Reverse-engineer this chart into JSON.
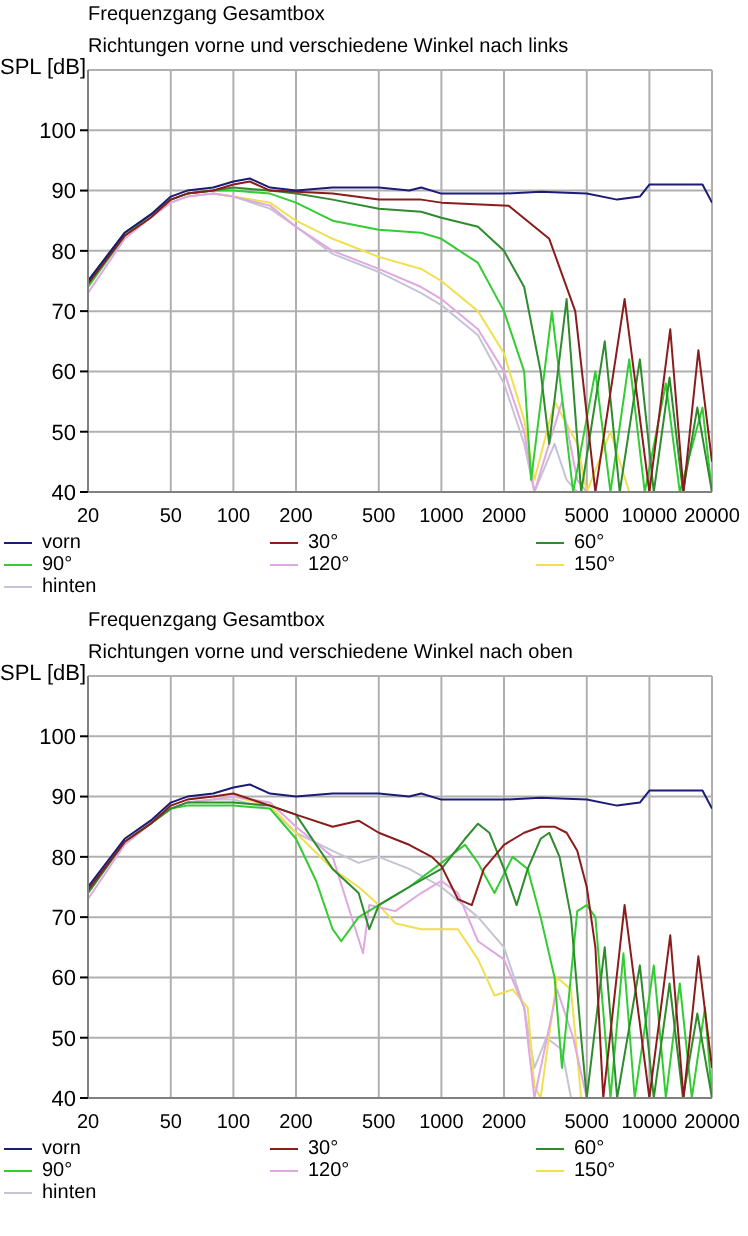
{
  "chart_data": [
    {
      "type": "line",
      "title": "Frequenzgang Gesamtbox",
      "subtitle": "Richtungen vorne und verschiedene Winkel nach links",
      "ylabel": "SPL [dB]",
      "log": "x",
      "xlim": [
        20,
        20000
      ],
      "xticks": [
        20,
        50,
        100,
        200,
        500,
        1000,
        2000,
        5000,
        10000,
        20000
      ],
      "ylim": [
        40,
        110
      ],
      "yticks": [
        40,
        50,
        60,
        70,
        80,
        90,
        100
      ],
      "grid": true,
      "legend": "bottom",
      "marker": "none",
      "series": [
        {
          "name": "vorn",
          "color": "#1c1c78",
          "x": [
            20,
            30,
            40,
            50,
            60,
            80,
            100,
            120,
            150,
            200,
            300,
            400,
            500,
            700,
            800,
            1000,
            2000,
            3000,
            5000,
            7000,
            9000,
            10000,
            15000,
            18000,
            20000
          ],
          "values": [
            75,
            83,
            86,
            89,
            90,
            90.5,
            91.5,
            92,
            90.5,
            90,
            90.5,
            90.5,
            90.5,
            90,
            90.5,
            89.5,
            89.5,
            89.8,
            89.5,
            88.5,
            89,
            91,
            91,
            91,
            88
          ]
        },
        {
          "name": "30°",
          "color": "#8b1c1c",
          "x": [
            20,
            30,
            40,
            50,
            60,
            80,
            100,
            120,
            150,
            300,
            500,
            800,
            1000,
            2100,
            3300,
            4400,
            5500,
            7600,
            10000,
            12600,
            14600,
            17200,
            20000
          ],
          "values": [
            74.5,
            82.5,
            85.5,
            88.5,
            89.5,
            90,
            91,
            91.5,
            90,
            89.5,
            88.5,
            88.5,
            88,
            87.5,
            82,
            70,
            40,
            72,
            40,
            67,
            40,
            63.5,
            45
          ]
        },
        {
          "name": "60°",
          "color": "#2e8b2e",
          "x": [
            20,
            30,
            40,
            50,
            60,
            80,
            100,
            150,
            200,
            300,
            500,
            800,
            1000,
            1500,
            2000,
            2500,
            3000,
            3300,
            4000,
            4700,
            6100,
            7200,
            9000,
            10500,
            12500,
            14500,
            17000,
            20000
          ],
          "values": [
            75,
            83,
            86,
            88.5,
            89.5,
            90,
            90.5,
            90,
            89.5,
            88.5,
            87,
            86.5,
            85.5,
            84,
            80,
            74,
            60,
            48,
            72,
            40,
            65,
            40,
            62,
            40,
            59,
            40,
            54,
            40
          ]
        },
        {
          "name": "90°",
          "color": "#33cc33",
          "x": [
            20,
            30,
            40,
            50,
            60,
            80,
            100,
            150,
            200,
            300,
            500,
            800,
            1000,
            1500,
            2000,
            2500,
            2700,
            3400,
            4300,
            5500,
            6500,
            8000,
            9500,
            12000,
            14000,
            18000,
            20000
          ],
          "values": [
            74,
            82.5,
            86,
            88.5,
            89.5,
            90,
            90,
            89.5,
            88,
            85,
            83.5,
            83,
            82,
            78,
            70,
            60,
            42,
            70,
            40,
            60,
            40,
            62,
            40,
            58,
            40,
            54,
            40
          ]
        },
        {
          "name": "120°",
          "color": "#e0a8e0",
          "x": [
            20,
            30,
            40,
            50,
            60,
            80,
            100,
            150,
            200,
            300,
            500,
            800,
            1000,
            1500,
            2000,
            2500,
            2800,
            3800,
            4500,
            5000
          ],
          "values": [
            73,
            82,
            85.5,
            88,
            89,
            89.5,
            89,
            87.5,
            84,
            80,
            77,
            74,
            72,
            67,
            60,
            50,
            40,
            55,
            42,
            40
          ]
        },
        {
          "name": "150°",
          "color": "#f0e050",
          "x": [
            80,
            100,
            150,
            200,
            300,
            500,
            800,
            1000,
            1500,
            2000,
            2500,
            2800,
            3500,
            4500,
            5000,
            6500,
            8000
          ],
          "values": [
            89.5,
            89,
            88,
            85,
            82,
            79,
            77,
            75,
            70,
            63,
            52,
            42,
            55,
            48,
            40,
            50,
            40
          ]
        },
        {
          "name": "hinten",
          "color": "#c4c4d4",
          "x": [
            20,
            30,
            40,
            50,
            60,
            80,
            100,
            150,
            200,
            300,
            500,
            800,
            1000,
            1500,
            2000,
            2500,
            2800,
            3500,
            4000,
            4500
          ],
          "values": [
            74,
            82.5,
            86,
            88,
            89,
            89.5,
            89,
            87,
            84,
            79.5,
            76.5,
            73,
            71,
            66,
            58,
            48,
            40,
            48,
            42,
            40
          ]
        }
      ]
    },
    {
      "type": "line",
      "title": "Frequenzgang Gesamtbox",
      "subtitle": "Richtungen vorne und verschiedene Winkel nach oben",
      "ylabel": "SPL [dB]",
      "log": "x",
      "xlim": [
        20,
        20000
      ],
      "xticks": [
        20,
        50,
        100,
        200,
        500,
        1000,
        2000,
        5000,
        10000,
        20000
      ],
      "ylim": [
        40,
        110
      ],
      "yticks": [
        40,
        50,
        60,
        70,
        80,
        90,
        100
      ],
      "grid": true,
      "legend": "bottom",
      "marker": "none",
      "series": [
        {
          "name": "vorn",
          "color": "#1c1c78",
          "x": [
            20,
            30,
            40,
            50,
            60,
            80,
            100,
            120,
            150,
            200,
            300,
            400,
            500,
            700,
            800,
            1000,
            2000,
            3000,
            5000,
            7000,
            9000,
            10000,
            15000,
            18000,
            20000
          ],
          "values": [
            75,
            83,
            86,
            89,
            90,
            90.5,
            91.5,
            92,
            90.5,
            90,
            90.5,
            90.5,
            90.5,
            90,
            90.5,
            89.5,
            89.5,
            89.8,
            89.5,
            88.5,
            89,
            91,
            91,
            91,
            88
          ]
        },
        {
          "name": "30°",
          "color": "#8b1c1c",
          "x": [
            20,
            30,
            40,
            50,
            60,
            80,
            100,
            150,
            200,
            300,
            400,
            500,
            700,
            900,
            1000,
            1200,
            1400,
            1600,
            2000,
            2500,
            3000,
            3500,
            4000,
            4500,
            5000,
            5500,
            6000,
            7600,
            10000,
            12600,
            14600,
            17200,
            20000
          ],
          "values": [
            74.5,
            82.5,
            85.5,
            88.5,
            89.5,
            90,
            90.5,
            88.5,
            87,
            85,
            86,
            84,
            82,
            80,
            78.5,
            73,
            72,
            78,
            82,
            84,
            85,
            85,
            84,
            81,
            75,
            65,
            40,
            72,
            40,
            67,
            40,
            63.5,
            45
          ]
        },
        {
          "name": "60°",
          "color": "#2e8b2e",
          "x": [
            20,
            30,
            40,
            50,
            60,
            80,
            100,
            150,
            200,
            250,
            300,
            400,
            450,
            500,
            700,
            1000,
            1300,
            1500,
            1700,
            2000,
            2300,
            2600,
            3000,
            3300,
            3700,
            4200,
            4700,
            5000,
            6100,
            7000,
            9000,
            10500,
            12500,
            14500,
            17000,
            20000
          ],
          "values": [
            74,
            82.5,
            85.5,
            88,
            89,
            89,
            89,
            88.5,
            87,
            82,
            78,
            74,
            68,
            72,
            75,
            78,
            83,
            85.5,
            84,
            78,
            72,
            78,
            83,
            84,
            80,
            70,
            50,
            40,
            65,
            40,
            62,
            40,
            59,
            40,
            54,
            40
          ]
        },
        {
          "name": "90°",
          "color": "#33cc33",
          "x": [
            20,
            30,
            40,
            50,
            60,
            80,
            100,
            150,
            200,
            250,
            300,
            330,
            400,
            500,
            700,
            1000,
            1300,
            1500,
            1800,
            2200,
            2600,
            3000,
            3500,
            3800,
            4500,
            5000,
            5500,
            6500,
            7500,
            8500,
            10500,
            12000,
            14000,
            16000,
            18500,
            20000
          ],
          "values": [
            74,
            82.5,
            85.5,
            88,
            88.5,
            88.5,
            88.5,
            88,
            83,
            76,
            68,
            66,
            70,
            72,
            75,
            79,
            82,
            79,
            74,
            80,
            78,
            70,
            60,
            45,
            71,
            72,
            70,
            40,
            64,
            40,
            62,
            40,
            59,
            40,
            55,
            40
          ]
        },
        {
          "name": "120°",
          "color": "#e0a8e0",
          "x": [
            20,
            30,
            40,
            50,
            60,
            80,
            100,
            150,
            200,
            300,
            420,
            450,
            600,
            800,
            1000,
            1200,
            1500,
            2000,
            2500,
            2800,
            3600,
            4300,
            5000
          ],
          "values": [
            73,
            82,
            85.5,
            88,
            89,
            89.5,
            90,
            89,
            85,
            80,
            64,
            72,
            71,
            74,
            76,
            74,
            66,
            63,
            55,
            40,
            58,
            50,
            40
          ]
        },
        {
          "name": "150°",
          "color": "#f0e050",
          "x": [
            80,
            100,
            150,
            200,
            300,
            400,
            500,
            600,
            800,
            1000,
            1200,
            1500,
            1800,
            2200,
            2600,
            2800,
            3000,
            3600,
            4200,
            4700
          ],
          "values": [
            89.5,
            90,
            88.5,
            84,
            78,
            75,
            72,
            69,
            68,
            68,
            68,
            63,
            57,
            58,
            55,
            42,
            40,
            60,
            58,
            40
          ]
        },
        {
          "name": "hinten",
          "color": "#c4c4d4",
          "x": [
            20,
            30,
            40,
            50,
            60,
            80,
            100,
            150,
            200,
            300,
            400,
            500,
            700,
            1000,
            1500,
            2000,
            2500,
            2800,
            3200,
            3800,
            4200
          ],
          "values": [
            74,
            82.5,
            86,
            88,
            89,
            89.5,
            89.5,
            88,
            84,
            81,
            79,
            80,
            78,
            75,
            70,
            65,
            55,
            45,
            50,
            48,
            40
          ]
        }
      ]
    }
  ]
}
